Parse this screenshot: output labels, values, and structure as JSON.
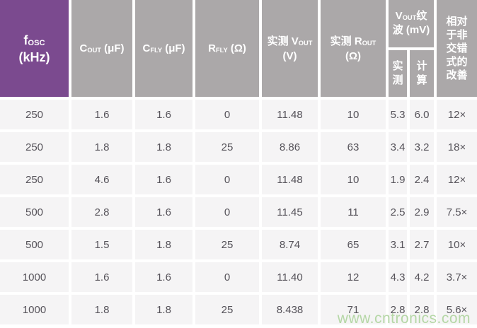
{
  "table": {
    "header": {
      "fosc": {
        "sym": "f",
        "sub": "OSC",
        "unit": "(kHz)"
      },
      "cout": {
        "sym": "C",
        "sub": "OUT",
        "unit": " (μF)"
      },
      "cfly": {
        "sym": "C",
        "sub": "FLY",
        "unit": " (μF)"
      },
      "rfly": {
        "sym": "R",
        "sub": "FLY",
        "unit": " (Ω)"
      },
      "vout_measured": {
        "prefix": "实测 V",
        "sub": "OUT",
        "unit": "(V)"
      },
      "rout_measured": {
        "prefix": "实测 R",
        "sub": "OUT",
        "unit": "(Ω)"
      },
      "vout_ripple": {
        "sym": "V",
        "sub": "OUT",
        "line1_rest": "纹",
        "line2": "波 (mV)",
        "measured": "实\n测",
        "calculated": "计\n算"
      },
      "improvement": "相对\n于非\n交错\n式的\n改善"
    },
    "rows": [
      [
        "250",
        "1.6",
        "1.6",
        "0",
        "11.48",
        "10",
        "5.3",
        "6.0",
        "12×"
      ],
      [
        "250",
        "1.8",
        "1.8",
        "25",
        "8.86",
        "63",
        "3.4",
        "3.2",
        "18×"
      ],
      [
        "250",
        "4.6",
        "1.6",
        "0",
        "11.48",
        "10",
        "1.9",
        "2.4",
        "12×"
      ],
      [
        "500",
        "2.8",
        "1.6",
        "0",
        "11.45",
        "11",
        "2.5",
        "2.9",
        "7.5×"
      ],
      [
        "500",
        "1.5",
        "1.8",
        "25",
        "8.74",
        "65",
        "3.1",
        "2.7",
        "10×"
      ],
      [
        "1000",
        "1.6",
        "1.6",
        "0",
        "11.40",
        "12",
        "4.3",
        "4.2",
        "3.7×"
      ],
      [
        "1000",
        "1.8",
        "1.8",
        "25",
        "8.438",
        "71",
        "2.8",
        "2.8",
        "5.6×"
      ]
    ]
  },
  "watermark": {
    "text": "www.cntronics.com"
  },
  "colors": {
    "header_purple": "#7B4A8F",
    "header_gray": "#ABA8A9",
    "row_background": "#F5F4F5",
    "data_text": "#56535A",
    "header_text": "#FFFFFF",
    "watermark_green": "#B5D7A6"
  }
}
